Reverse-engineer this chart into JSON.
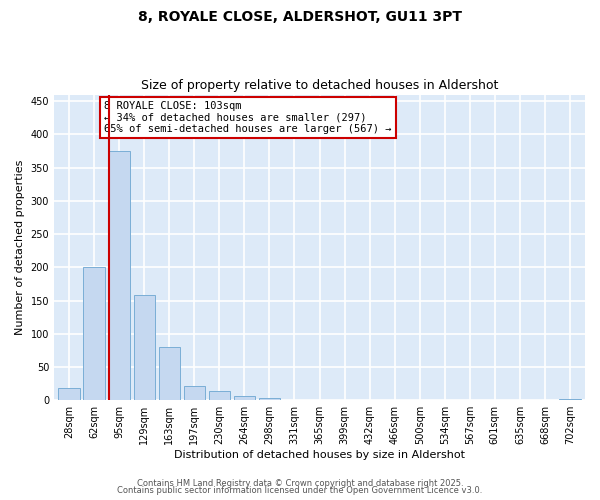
{
  "title1": "8, ROYALE CLOSE, ALDERSHOT, GU11 3PT",
  "title2": "Size of property relative to detached houses in Aldershot",
  "xlabel": "Distribution of detached houses by size in Aldershot",
  "ylabel": "Number of detached properties",
  "bar_labels": [
    "28sqm",
    "62sqm",
    "95sqm",
    "129sqm",
    "163sqm",
    "197sqm",
    "230sqm",
    "264sqm",
    "298sqm",
    "331sqm",
    "365sqm",
    "399sqm",
    "432sqm",
    "466sqm",
    "500sqm",
    "534sqm",
    "567sqm",
    "601sqm",
    "635sqm",
    "668sqm",
    "702sqm"
  ],
  "bar_values": [
    18,
    200,
    375,
    158,
    80,
    22,
    14,
    7,
    4,
    0,
    0,
    0,
    0,
    0,
    0,
    0,
    0,
    0,
    0,
    0,
    2
  ],
  "bar_color": "#c5d8f0",
  "bar_edgecolor": "#7aaed6",
  "ylim": [
    0,
    460
  ],
  "yticks": [
    0,
    50,
    100,
    150,
    200,
    250,
    300,
    350,
    400,
    450
  ],
  "red_line_index": 2,
  "red_line_color": "#cc0000",
  "annotation_text": "8 ROYALE CLOSE: 103sqm\n← 34% of detached houses are smaller (297)\n65% of semi-detached houses are larger (567) →",
  "annotation_box_color": "#ffffff",
  "annotation_box_edgecolor": "#cc0000",
  "footer1": "Contains HM Land Registry data © Crown copyright and database right 2025.",
  "footer2": "Contains public sector information licensed under the Open Government Licence v3.0.",
  "bg_color": "#ddeaf8",
  "fig_bg_color": "#ffffff",
  "title_fontsize": 10,
  "subtitle_fontsize": 9,
  "ylabel_fontsize": 8,
  "xlabel_fontsize": 8,
  "tick_fontsize": 7,
  "annotation_fontsize": 7.5,
  "footer_fontsize": 6
}
